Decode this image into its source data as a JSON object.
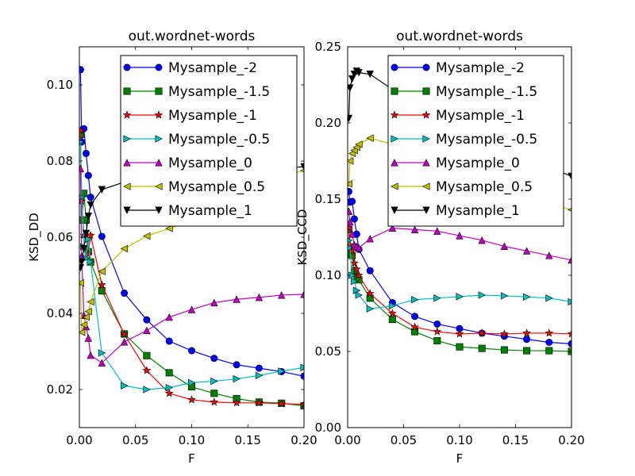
{
  "chart_data": [
    {
      "type": "line",
      "title": "out.wordnet-words",
      "xlabel": "F",
      "ylabel": "KSD_DD",
      "xlim": [
        0,
        0.2
      ],
      "ylim": [
        0.01,
        0.11
      ],
      "xticks": [
        0.0,
        0.05,
        0.1,
        0.15,
        0.2
      ],
      "xtick_labels": [
        "0.00",
        "0.05",
        "0.10",
        "0.15",
        "0.20"
      ],
      "yticks": [
        0.02,
        0.04,
        0.06,
        0.08,
        0.1
      ],
      "ytick_labels": [
        "0.02",
        "0.04",
        "0.06",
        "0.08",
        "0.10"
      ],
      "legend_position": "top-right",
      "grid": false,
      "series": [
        {
          "name": "Mysample_-2",
          "color": "#0000ff",
          "marker": "circle",
          "x": [
            0.001,
            0.002,
            0.004,
            0.006,
            0.008,
            0.01,
            0.02,
            0.04,
            0.06,
            0.08,
            0.1,
            0.12,
            0.14,
            0.16,
            0.18,
            0.2
          ],
          "y": [
            0.104,
            0.085,
            0.0885,
            0.082,
            0.0762,
            0.0705,
            0.0602,
            0.0453,
            0.0383,
            0.0327,
            0.0302,
            0.0282,
            0.0265,
            0.0256,
            0.0247,
            0.0235
          ]
        },
        {
          "name": "Mysample_-1.5",
          "color": "#008000",
          "marker": "square",
          "x": [
            0.001,
            0.002,
            0.004,
            0.006,
            0.008,
            0.01,
            0.02,
            0.04,
            0.06,
            0.08,
            0.1,
            0.12,
            0.14,
            0.16,
            0.18,
            0.2
          ],
          "y": [
            0.087,
            0.0645,
            0.0715,
            0.0645,
            0.0562,
            0.0535,
            0.0459,
            0.0346,
            0.0289,
            0.0244,
            0.0207,
            0.019,
            0.0176,
            0.0167,
            0.0164,
            0.0157
          ]
        },
        {
          "name": "Mysample_-1",
          "color": "#ff0000",
          "marker": "star",
          "x": [
            0.001,
            0.002,
            0.004,
            0.006,
            0.008,
            0.01,
            0.02,
            0.04,
            0.06,
            0.08,
            0.1,
            0.12,
            0.14,
            0.16,
            0.18,
            0.2
          ],
          "y": [
            0.088,
            0.0695,
            0.0605,
            0.0605,
            0.0555,
            0.0605,
            0.0475,
            0.0345,
            0.025,
            0.019,
            0.0173,
            0.0167,
            0.0165,
            0.0165,
            0.0163,
            0.0161
          ]
        },
        {
          "name": "Mysample_-0.5",
          "color": "#00bfbf",
          "marker": "triangle-right",
          "x": [
            0.001,
            0.002,
            0.004,
            0.006,
            0.008,
            0.01,
            0.02,
            0.04,
            0.06,
            0.08,
            0.1,
            0.12,
            0.14,
            0.16,
            0.18,
            0.2
          ],
          "y": [
            0.085,
            0.0705,
            0.0575,
            0.0545,
            0.0595,
            0.0535,
            0.0296,
            0.021,
            0.02,
            0.0205,
            0.0218,
            0.0222,
            0.0228,
            0.0237,
            0.0248,
            0.0258
          ]
        },
        {
          "name": "Mysample_0",
          "color": "#bf00bf",
          "marker": "triangle-up",
          "x": [
            0.001,
            0.002,
            0.004,
            0.006,
            0.008,
            0.01,
            0.02,
            0.04,
            0.06,
            0.08,
            0.1,
            0.12,
            0.14,
            0.16,
            0.18,
            0.2
          ],
          "y": [
            0.078,
            0.055,
            0.0395,
            0.0365,
            0.0335,
            0.029,
            0.027,
            0.0325,
            0.0355,
            0.039,
            0.041,
            0.0428,
            0.0437,
            0.0442,
            0.0448,
            0.045
          ]
        },
        {
          "name": "Mysample_0.5",
          "color": "#bfbf00",
          "marker": "triangle-left",
          "x": [
            0.001,
            0.002,
            0.004,
            0.006,
            0.008,
            0.01,
            0.02,
            0.04,
            0.06,
            0.08,
            0.1,
            0.12,
            0.14,
            0.16,
            0.18,
            0.2
          ],
          "y": [
            0.048,
            0.035,
            0.037,
            0.039,
            0.0405,
            0.043,
            0.051,
            0.057,
            0.0603,
            0.0623,
            0.064,
            0.0665,
            0.0705,
            0.073,
            0.076,
            0.0775
          ]
        },
        {
          "name": "Mysample_1",
          "color": "#000000",
          "marker": "triangle-down",
          "x": [
            0.001,
            0.002,
            0.004,
            0.006,
            0.008,
            0.01,
            0.02,
            0.04,
            0.06,
            0.08,
            0.1,
            0.12,
            0.14,
            0.16,
            0.18,
            0.2
          ],
          "y": [
            0.052,
            0.0535,
            0.057,
            0.061,
            0.0655,
            0.0685,
            0.0725,
            0.0745,
            0.076,
            0.0768,
            0.0772,
            0.0775,
            0.0778,
            0.078,
            0.0782,
            0.0785
          ]
        }
      ]
    },
    {
      "type": "line",
      "title": "out.wordnet-words",
      "xlabel": "F",
      "ylabel": "KSD_CCD",
      "xlim": [
        0,
        0.2
      ],
      "ylim": [
        0,
        0.25
      ],
      "xticks": [
        0.0,
        0.05,
        0.1,
        0.15,
        0.2
      ],
      "xtick_labels": [
        "0.00",
        "0.05",
        "0.10",
        "0.15",
        "0.20"
      ],
      "yticks": [
        0.0,
        0.05,
        0.1,
        0.15,
        0.2,
        0.25
      ],
      "ytick_labels": [
        "0.00",
        "0.05",
        "0.10",
        "0.15",
        "0.20",
        "0.25"
      ],
      "legend_position": "top-right",
      "grid": false,
      "series": [
        {
          "name": "Mysample_-2",
          "color": "#0000ff",
          "marker": "circle",
          "x": [
            0.001,
            0.002,
            0.004,
            0.006,
            0.008,
            0.01,
            0.02,
            0.04,
            0.06,
            0.08,
            0.1,
            0.12,
            0.14,
            0.16,
            0.18,
            0.2
          ],
          "y": [
            0.155,
            0.148,
            0.1485,
            0.137,
            0.127,
            0.117,
            0.103,
            0.082,
            0.073,
            0.068,
            0.065,
            0.062,
            0.06,
            0.058,
            0.056,
            0.055
          ]
        },
        {
          "name": "Mysample_-1.5",
          "color": "#008000",
          "marker": "square",
          "x": [
            0.001,
            0.002,
            0.004,
            0.006,
            0.008,
            0.01,
            0.02,
            0.04,
            0.06,
            0.08,
            0.1,
            0.12,
            0.14,
            0.16,
            0.18,
            0.2
          ],
          "y": [
            0.13,
            0.114,
            0.113,
            0.103,
            0.099,
            0.097,
            0.085,
            0.071,
            0.063,
            0.057,
            0.053,
            0.052,
            0.051,
            0.0505,
            0.0505,
            0.05
          ]
        },
        {
          "name": "Mysample_-1",
          "color": "#ff0000",
          "marker": "star",
          "x": [
            0.001,
            0.002,
            0.004,
            0.006,
            0.008,
            0.01,
            0.02,
            0.04,
            0.06,
            0.08,
            0.1,
            0.12,
            0.14,
            0.16,
            0.18,
            0.2
          ],
          "y": [
            0.131,
            0.12,
            0.116,
            0.108,
            0.104,
            0.1,
            0.088,
            0.075,
            0.066,
            0.063,
            0.0615,
            0.062,
            0.0615,
            0.062,
            0.062,
            0.0615
          ]
        },
        {
          "name": "Mysample_-0.5",
          "color": "#00bfbf",
          "marker": "triangle-right",
          "x": [
            0.001,
            0.002,
            0.004,
            0.006,
            0.008,
            0.01,
            0.02,
            0.04,
            0.06,
            0.08,
            0.1,
            0.12,
            0.14,
            0.16,
            0.18,
            0.2
          ],
          "y": [
            0.123,
            0.118,
            0.1,
            0.096,
            0.09,
            0.087,
            0.078,
            0.08,
            0.084,
            0.085,
            0.086,
            0.087,
            0.0865,
            0.0858,
            0.085,
            0.0826
          ]
        },
        {
          "name": "Mysample_0",
          "color": "#bf00bf",
          "marker": "triangle-up",
          "x": [
            0.001,
            0.002,
            0.004,
            0.006,
            0.008,
            0.01,
            0.02,
            0.04,
            0.06,
            0.08,
            0.1,
            0.12,
            0.14,
            0.16,
            0.18,
            0.2
          ],
          "y": [
            0.142,
            0.135,
            0.127,
            0.12,
            0.119,
            0.118,
            0.124,
            0.131,
            0.13,
            0.129,
            0.126,
            0.123,
            0.119,
            0.116,
            0.113,
            0.11
          ]
        },
        {
          "name": "Mysample_0.5",
          "color": "#bfbf00",
          "marker": "triangle-left",
          "x": [
            0.001,
            0.002,
            0.004,
            0.006,
            0.008,
            0.01,
            0.02,
            0.04,
            0.06,
            0.08,
            0.1,
            0.12,
            0.14,
            0.16,
            0.18,
            0.2
          ],
          "y": [
            0.16,
            0.175,
            0.18,
            0.182,
            0.184,
            0.186,
            0.19,
            0.186,
            0.181,
            0.175,
            0.168,
            0.162,
            0.156,
            0.151,
            0.147,
            0.143
          ]
        },
        {
          "name": "Mysample_1",
          "color": "#000000",
          "marker": "triangle-down",
          "x": [
            0.001,
            0.002,
            0.004,
            0.006,
            0.008,
            0.01,
            0.02,
            0.04,
            0.06,
            0.08,
            0.1,
            0.12,
            0.14,
            0.16,
            0.18,
            0.2
          ],
          "y": [
            0.203,
            0.223,
            0.229,
            0.232,
            0.234,
            0.233,
            0.232,
            0.222,
            0.213,
            0.205,
            0.197,
            0.19,
            0.184,
            0.177,
            0.171,
            0.165
          ]
        }
      ]
    }
  ]
}
